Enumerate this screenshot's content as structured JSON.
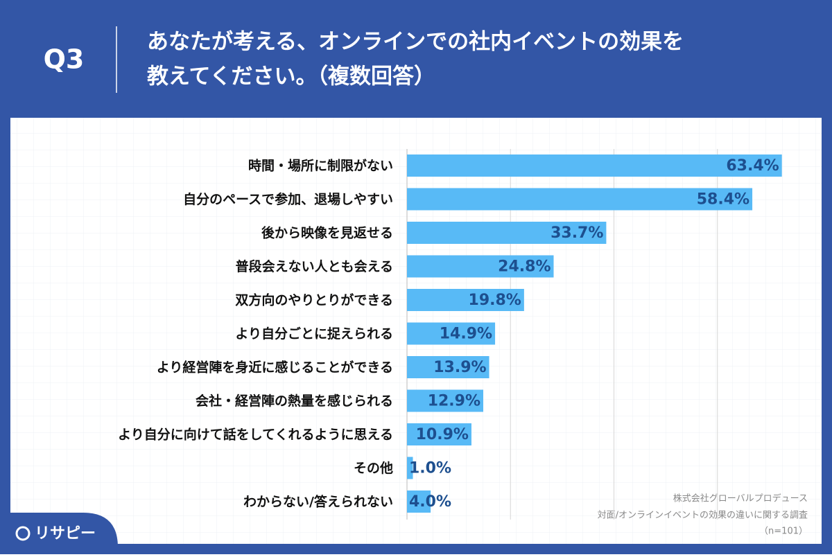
{
  "chart_data": {
    "type": "bar",
    "orientation": "horizontal",
    "question": "Q3",
    "title_lines": [
      "あなたが考える、オンラインでの社内イベントの効果を",
      "教えてください。（複数回答）"
    ],
    "categories": [
      "時間・場所に制限がない",
      "自分のペースで参加、退場しやすい",
      "後から映像を見返せる",
      "普段会えない人とも会える",
      "双方向のやりとりができる",
      "より自分ごとに捉えられる",
      "より経営陣を身近に感じることができる",
      "会社・経営陣の熱量を感じられる",
      "より自分に向けて話をしてくれるように思える",
      "その他",
      "わからない/答えられない"
    ],
    "values": [
      63.4,
      58.4,
      33.7,
      24.8,
      19.8,
      14.9,
      13.9,
      12.9,
      10.9,
      1.0,
      4.0
    ],
    "value_labels": [
      "63.4%",
      "58.4%",
      "33.7%",
      "24.8%",
      "19.8%",
      "14.9%",
      "13.9%",
      "12.9%",
      "10.9%",
      "1.0%",
      "4.0%"
    ],
    "color": "#58baf6",
    "xlim": [
      0,
      70
    ],
    "xticks": [
      0,
      17.5,
      35,
      52.5
    ],
    "grid": true,
    "source_lines": [
      "株式会社グローバルプロデュース",
      "対面/オンラインイベントの効果の違いに関する調査",
      "（n=101）"
    ],
    "brand": "リサピー"
  }
}
